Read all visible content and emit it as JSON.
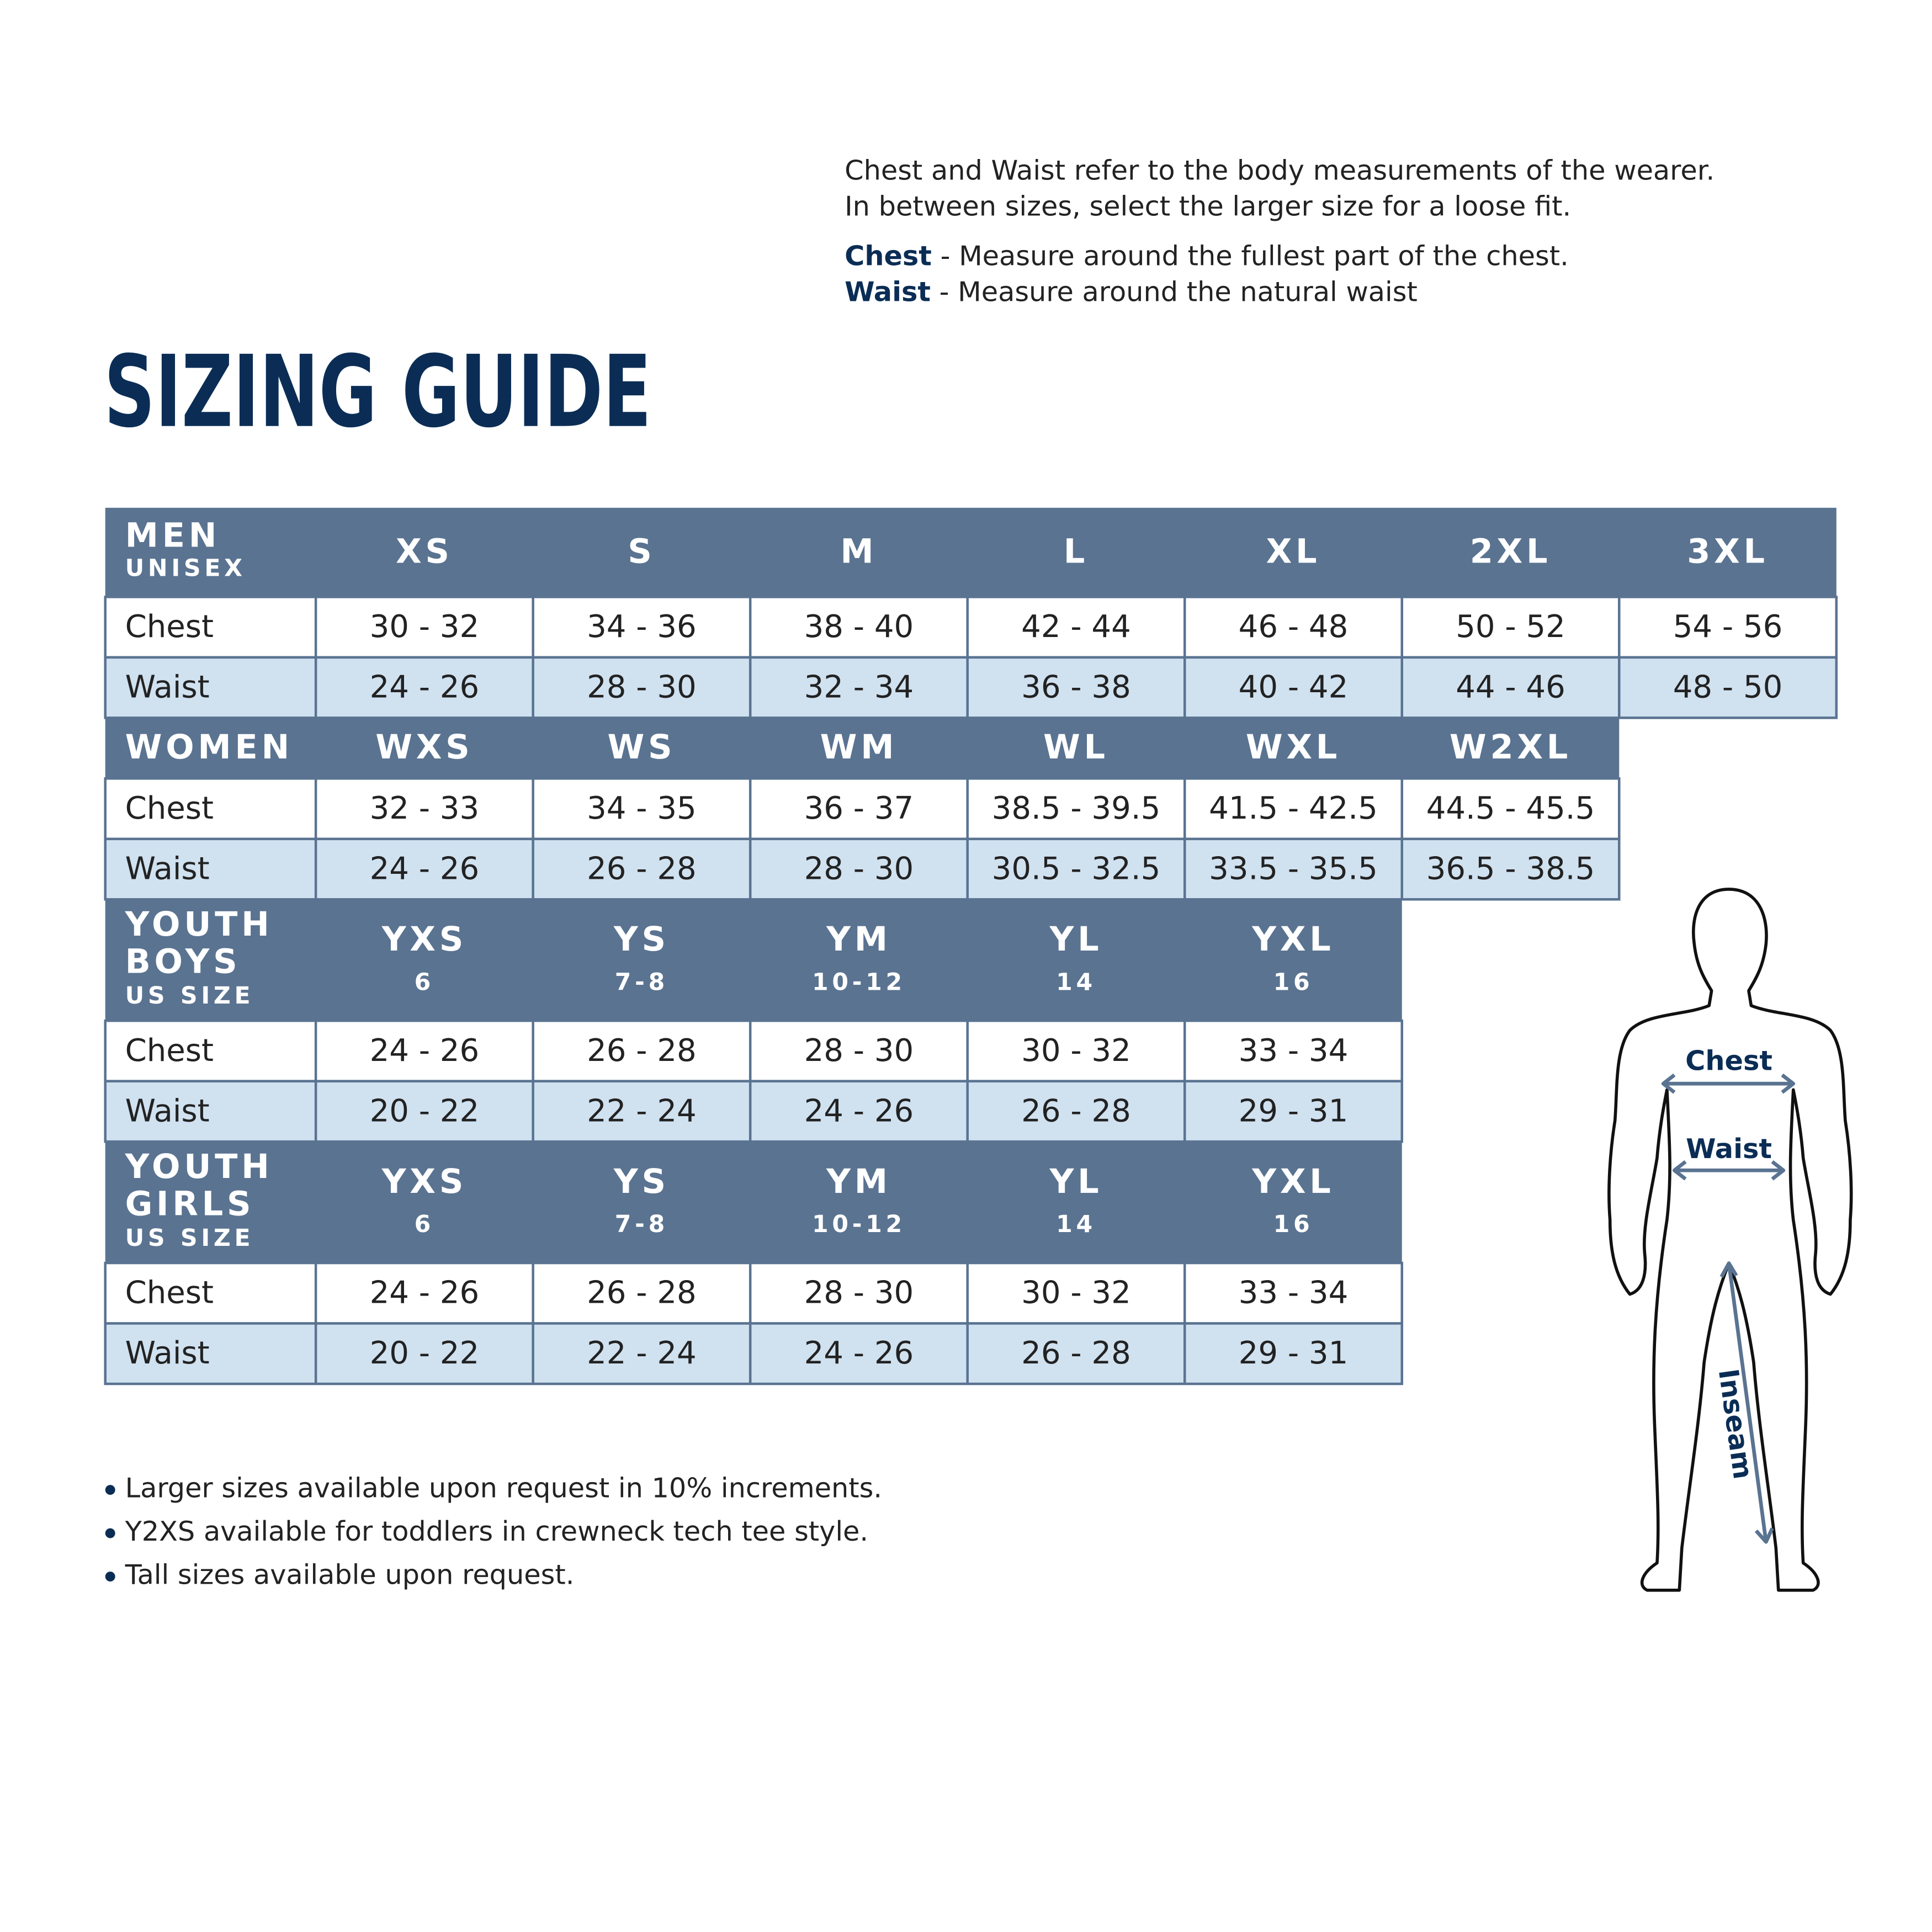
{
  "intro": {
    "lines": [
      "Chest and Waist refer to the body measurements of the wearer.",
      "In between sizes, select the larger size for a loose fit."
    ]
  },
  "definitions": [
    {
      "term": "Chest",
      "text": "- Measure around the fullest part of the chest."
    },
    {
      "term": "Waist",
      "text": "- Measure around the natural waist"
    }
  ],
  "title": "SIZING GUIDE",
  "sections": [
    {
      "label": [
        "MEN"
      ],
      "sublabel": "UNISEX",
      "sizes": [
        {
          "label": "XS"
        },
        {
          "label": "S"
        },
        {
          "label": "M"
        },
        {
          "label": "L"
        },
        {
          "label": "XL"
        },
        {
          "label": "2XL"
        },
        {
          "label": "3XL"
        }
      ],
      "rows": [
        {
          "label": "Chest",
          "cells": [
            "30 - 32",
            "34 - 36",
            "38 - 40",
            "42 - 44",
            "46 - 48",
            "50 - 52",
            "54 - 56"
          ]
        },
        {
          "label": "Waist",
          "cells": [
            "24 - 26",
            "28 - 30",
            "32 - 34",
            "36 - 38",
            "40 - 42",
            "44 - 46",
            "48 - 50"
          ]
        }
      ]
    },
    {
      "label": [
        "WOMEN"
      ],
      "sizes": [
        {
          "label": "WXS"
        },
        {
          "label": "WS"
        },
        {
          "label": "WM"
        },
        {
          "label": "WL"
        },
        {
          "label": "WXL"
        },
        {
          "label": "W2XL"
        }
      ],
      "rows": [
        {
          "label": "Chest",
          "cells": [
            "32 - 33",
            "34 - 35",
            "36 - 37",
            "38.5 - 39.5",
            "41.5 - 42.5",
            "44.5 - 45.5"
          ]
        },
        {
          "label": "Waist",
          "cells": [
            "24 - 26",
            "26 - 28",
            "28 - 30",
            "30.5 - 32.5",
            "33.5 - 35.5",
            "36.5 - 38.5"
          ]
        }
      ]
    },
    {
      "label": [
        "YOUTH",
        "BOYS"
      ],
      "sublabel": "US SIZE",
      "sizes": [
        {
          "label": "YXS",
          "us": "6"
        },
        {
          "label": "YS",
          "us": "7-8"
        },
        {
          "label": "YM",
          "us": "10-12"
        },
        {
          "label": "YL",
          "us": "14"
        },
        {
          "label": "YXL",
          "us": "16"
        }
      ],
      "rows": [
        {
          "label": "Chest",
          "cells": [
            "24 - 26",
            "26 - 28",
            "28 - 30",
            "30 - 32",
            "33 - 34"
          ]
        },
        {
          "label": "Waist",
          "cells": [
            "20 - 22",
            "22 - 24",
            "24 - 26",
            "26 - 28",
            "29 - 31"
          ]
        }
      ]
    },
    {
      "label": [
        "YOUTH",
        "GIRLS"
      ],
      "sublabel": "US SIZE",
      "sizes": [
        {
          "label": "YXS",
          "us": "6"
        },
        {
          "label": "YS",
          "us": "7-8"
        },
        {
          "label": "YM",
          "us": "10-12"
        },
        {
          "label": "YL",
          "us": "14"
        },
        {
          "label": "YXL",
          "us": "16"
        }
      ],
      "rows": [
        {
          "label": "Chest",
          "cells": [
            "24 - 26",
            "26 - 28",
            "28 - 30",
            "30 - 32",
            "33 - 34"
          ]
        },
        {
          "label": "Waist",
          "cells": [
            "20 - 22",
            "22 - 24",
            "24 - 26",
            "26 - 28",
            "29 - 31"
          ]
        }
      ]
    }
  ],
  "notes": [
    "Larger sizes available upon request in 10% increments.",
    "Y2XS available for toddlers in crewneck tech tee style.",
    "Tall sizes available upon request."
  ],
  "figure": {
    "labels": [
      "Chest",
      "Waist",
      "Inseam"
    ]
  }
}
